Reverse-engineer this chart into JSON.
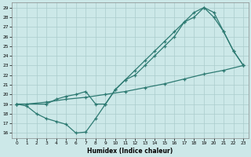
{
  "xlabel": "Humidex (Indice chaleur)",
  "bg_color": "#cce8e8",
  "line_color": "#2d7a72",
  "grid_color": "#aacccc",
  "xlim": [
    -0.5,
    23.5
  ],
  "ylim": [
    15.5,
    29.5
  ],
  "xticks": [
    0,
    1,
    2,
    3,
    4,
    5,
    6,
    7,
    8,
    9,
    10,
    11,
    12,
    13,
    14,
    15,
    16,
    17,
    18,
    19,
    20,
    21,
    22,
    23
  ],
  "yticks": [
    16,
    17,
    18,
    19,
    20,
    21,
    22,
    23,
    24,
    25,
    26,
    27,
    28,
    29
  ],
  "line1_x": [
    0,
    1,
    2,
    3,
    4,
    5,
    6,
    7,
    8,
    9,
    10,
    11,
    12,
    13,
    14,
    15,
    16,
    17,
    18,
    19,
    20,
    21,
    22,
    23
  ],
  "line1_y": [
    19,
    18.8,
    18.0,
    17.5,
    17.2,
    16.9,
    16.0,
    16.1,
    17.5,
    19.0,
    20.5,
    21.5,
    22.5,
    23.5,
    24.5,
    25.5,
    26.5,
    27.5,
    28.5,
    29.0,
    28.5,
    26.5,
    24.5,
    23.0
  ],
  "line2_x": [
    0,
    3,
    4,
    5,
    6,
    7,
    8,
    9,
    10,
    11,
    12,
    13,
    14,
    15,
    16,
    17,
    18,
    19,
    20,
    21,
    22,
    23
  ],
  "line2_y": [
    19,
    19.0,
    19.5,
    19.8,
    20.0,
    20.3,
    19.0,
    19.0,
    20.5,
    21.5,
    22.0,
    23.0,
    24.0,
    25.0,
    26.0,
    27.5,
    28.0,
    29.0,
    28.0,
    26.5,
    24.5,
    23.0
  ],
  "line3_x": [
    0,
    1,
    3,
    5,
    7,
    9,
    11,
    13,
    15,
    17,
    19,
    21,
    23
  ],
  "line3_y": [
    19,
    19.0,
    19.2,
    19.5,
    19.7,
    20.0,
    20.3,
    20.7,
    21.1,
    21.6,
    22.1,
    22.5,
    23.0
  ]
}
